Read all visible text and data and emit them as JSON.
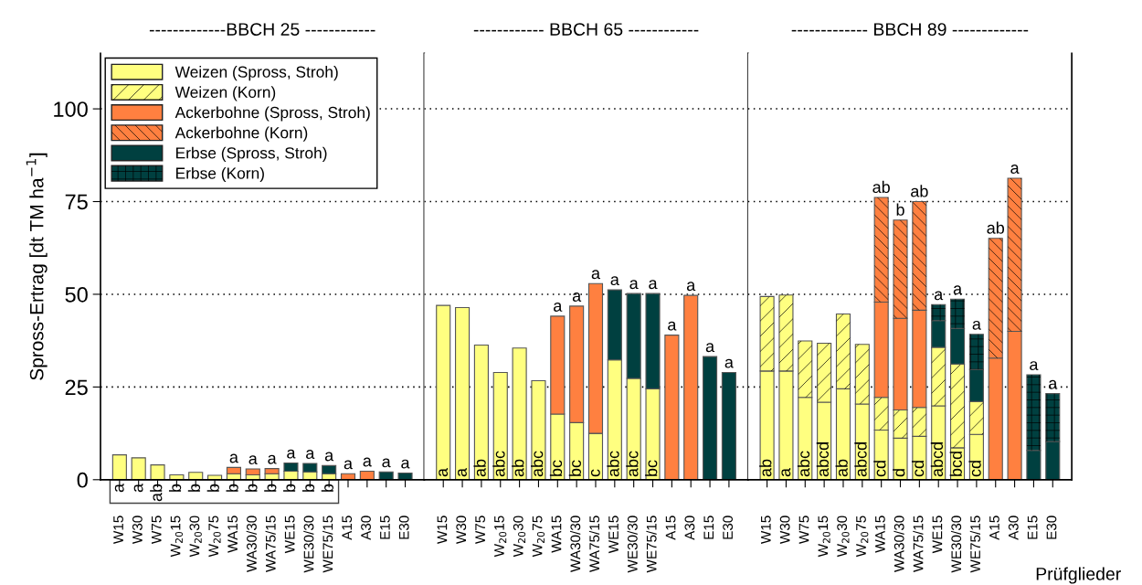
{
  "chart_data": [
    {
      "type": "bar",
      "stacked": true,
      "title": "-------------BBCH 25 ------------",
      "ylabel": "Spross-Ertrag [dt TM ha$^{−1}$]",
      "legend": "top left",
      "grid": "y",
      "categories": [
        "W15",
        "W30",
        "W75",
        "W$_{20}$15",
        "W$_{20}$30",
        "W$_{20}$75",
        "WA15",
        "WA30/30",
        "WA75/15",
        "WE15",
        "WE30/30",
        "WE75/15",
        "A15",
        "A30",
        "E15",
        "E30"
      ],
      "ylim": [
        0,
        115
      ],
      "yticks": [
        0,
        25,
        50,
        75,
        100
      ],
      "series": [
        {
          "name": "Weizen (Spross, Stroh)",
          "color": "#ffff80",
          "values": [
            6.7,
            5.9,
            4.0,
            1.3,
            2.0,
            1.2,
            1.6,
            1.3,
            1.6,
            2.3,
            2.1,
            1.6,
            null,
            null,
            null,
            null
          ]
        },
        {
          "name": "Weizen (Korn)",
          "color": "#ffff80",
          "values": [
            null,
            null,
            null,
            null,
            null,
            null,
            null,
            null,
            null,
            null,
            null,
            null,
            null,
            null,
            null,
            null
          ]
        },
        {
          "name": "Ackerbohne (Spross, Stroh)",
          "color": "#ff8040",
          "values": [
            null,
            null,
            null,
            null,
            null,
            null,
            1.7,
            1.6,
            1.4,
            null,
            null,
            null,
            1.6,
            2.3,
            null,
            null
          ]
        },
        {
          "name": "Ackerbohne (Korn)",
          "color": "#ff8040",
          "values": [
            null,
            null,
            null,
            null,
            null,
            null,
            null,
            null,
            null,
            null,
            null,
            null,
            null,
            null,
            null,
            null
          ]
        },
        {
          "name": "Erbse (Spross, Stroh)",
          "color": "#004040",
          "values": [
            null,
            null,
            null,
            null,
            null,
            null,
            null,
            null,
            null,
            2.2,
            2.3,
            2.2,
            null,
            null,
            2.1,
            1.8
          ]
        },
        {
          "name": "Erbse (Korn)",
          "color": "#004040",
          "values": [
            null,
            null,
            null,
            null,
            null,
            null,
            null,
            null,
            null,
            null,
            null,
            null,
            null,
            null,
            null,
            null
          ]
        }
      ],
      "annotations": [
        {
          "text": "a",
          "x": "W15",
          "y": 0
        },
        {
          "text": "a",
          "x": "W30",
          "y": 0
        },
        {
          "text": "ab",
          "x": "W75",
          "y": 0
        },
        {
          "text": "b",
          "x": "W$_{20}$15",
          "y": 0
        },
        {
          "text": "b",
          "x": "W$_{20}$30",
          "y": 0
        },
        {
          "text": "b",
          "x": "W$_{20}$75",
          "y": 0
        },
        {
          "text": "b",
          "x": "WA15",
          "y": 0
        },
        {
          "text": "b",
          "x": "WA30/30",
          "y": 0
        },
        {
          "text": "b",
          "x": "WA75/15",
          "y": 0
        },
        {
          "text": "b",
          "x": "WE15",
          "y": 0
        },
        {
          "text": "b",
          "x": "WE30/30",
          "y": 0
        },
        {
          "text": "b",
          "x": "WE75/15",
          "y": 0
        },
        {
          "text": "a",
          "x": "WA15",
          "y": 3.3
        },
        {
          "text": "a",
          "x": "WA30/30",
          "y": 2.9
        },
        {
          "text": "a",
          "x": "WA75/15",
          "y": 3.0
        },
        {
          "text": "a",
          "x": "WE15",
          "y": 4.5
        },
        {
          "text": "a",
          "x": "WE30/30",
          "y": 4.4
        },
        {
          "text": "a",
          "x": "WE75/15",
          "y": 3.8
        },
        {
          "text": "a",
          "x": "A15",
          "y": 1.6
        },
        {
          "text": "a",
          "x": "A30",
          "y": 2.3
        },
        {
          "text": "a",
          "x": "E15",
          "y": 2.1
        },
        {
          "text": "a",
          "x": "E30",
          "y": 1.8
        }
      ]
    },
    {
      "type": "bar",
      "stacked": true,
      "title": "------------ BBCH 65 ------------",
      "grid": "y",
      "tick_labels": "x",
      "categories": [
        "W15",
        "W30",
        "W75",
        "W$_{20}$15",
        "W$_{20}$30",
        "W$_{20}$75",
        "WA15",
        "WA30/30",
        "WA75/15",
        "WE15",
        "WE30/30",
        "WE75/15",
        "A15",
        "A30",
        "E15",
        "E30"
      ],
      "ylim": [
        0,
        115
      ],
      "yticks": [
        0,
        25,
        50,
        75,
        100
      ],
      "series": [
        {
          "color": "#ffff80",
          "values": [
            47.0,
            46.4,
            36.3,
            28.9,
            35.5,
            26.7,
            17.7,
            15.4,
            12.5,
            32.3,
            27.3,
            24.5,
            null,
            null,
            null,
            null
          ]
        },
        {
          "color": "#ff8040",
          "values": [
            null,
            null,
            null,
            null,
            null,
            null,
            26.4,
            31.4,
            40.4,
            null,
            null,
            null,
            39.0,
            49.7,
            null,
            null
          ]
        },
        {
          "color": "#004040",
          "values": [
            null,
            null,
            null,
            null,
            null,
            null,
            null,
            null,
            null,
            18.9,
            22.9,
            25.7,
            null,
            null,
            33.2,
            28.9
          ]
        }
      ],
      "annotations": [
        {
          "text": "a",
          "x": "W15",
          "y": 0
        },
        {
          "text": "a",
          "x": "W30",
          "y": 0
        },
        {
          "text": "ab",
          "x": "W75",
          "y": 0
        },
        {
          "text": "abc",
          "x": "W$_{20}$15",
          "y": 0
        },
        {
          "text": "ab",
          "x": "W$_{20}$30",
          "y": 0
        },
        {
          "text": "abc",
          "x": "W$_{20}$75",
          "y": 0
        },
        {
          "text": "bc",
          "x": "WA15",
          "y": 0
        },
        {
          "text": "bc",
          "x": "WA30/30",
          "y": 0
        },
        {
          "text": "c",
          "x": "WA75/15",
          "y": 0
        },
        {
          "text": "abc",
          "x": "WE15",
          "y": 0
        },
        {
          "text": "abc",
          "x": "WE30/30",
          "y": 0
        },
        {
          "text": "bc",
          "x": "WE75/15",
          "y": 0
        },
        {
          "text": "a",
          "x": "WA15",
          "y": 44.1
        },
        {
          "text": "a",
          "x": "WA30/30",
          "y": 46.8
        },
        {
          "text": "a",
          "x": "WA75/15",
          "y": 52.9
        },
        {
          "text": "a",
          "x": "WE15",
          "y": 51.2
        },
        {
          "text": "a",
          "x": "WE30/30",
          "y": 50.2
        },
        {
          "text": "a",
          "x": "WE75/15",
          "y": 50.2
        },
        {
          "text": "a",
          "x": "A15",
          "y": 39.0
        },
        {
          "text": "a",
          "x": "A30",
          "y": 49.7
        },
        {
          "text": "a",
          "x": "E15",
          "y": 33.2
        },
        {
          "text": "a",
          "x": "E30",
          "y": 28.9
        }
      ]
    },
    {
      "type": "bar",
      "stacked": true,
      "title": "------------- BBCH 89 -------------",
      "xlabel": "Prüfglieder",
      "grid": "y",
      "tick_labels": "x",
      "categories": [
        "W15",
        "W30",
        "W75",
        "W$_{20}$15",
        "W$_{20}$30",
        "W$_{20}$75",
        "WA15",
        "WA30/30",
        "WA75/15",
        "WE15",
        "WE30/30",
        "WE75/15",
        "A15",
        "A30",
        "E15",
        "E30"
      ],
      "ylim": [
        0,
        115
      ],
      "yticks": [
        0,
        25,
        50,
        75,
        100
      ],
      "series": [
        {
          "color": "#ffff80",
          "values": [
            29.3,
            29.3,
            22.2,
            20.9,
            24.5,
            20.4,
            13.4,
            11.2,
            11.7,
            19.9,
            8.6,
            12.2,
            null,
            null,
            null,
            null
          ]
        },
        {
          "color": "#ffff80",
          "values": [
            20.1,
            20.5,
            15.2,
            15.9,
            20.2,
            16.1,
            8.8,
            7.6,
            7.8,
            15.8,
            22.6,
            8.9,
            null,
            null,
            null,
            null
          ]
        },
        {
          "color": "#ff8040",
          "values": [
            null,
            null,
            null,
            null,
            null,
            null,
            25.7,
            24.7,
            26.2,
            null,
            null,
            null,
            32.8,
            40.0,
            null,
            null
          ]
        },
        {
          "color": "#ff8040",
          "values": [
            null,
            null,
            null,
            null,
            null,
            null,
            28.2,
            26.5,
            29.3,
            null,
            null,
            null,
            32.3,
            41.3,
            null,
            null
          ]
        },
        {
          "color": "#004040",
          "values": [
            null,
            null,
            null,
            null,
            null,
            null,
            null,
            null,
            null,
            7.2,
            9.6,
            8.6,
            null,
            null,
            7.9,
            10.3
          ]
        },
        {
          "color": "#004040",
          "values": [
            null,
            null,
            null,
            null,
            null,
            null,
            null,
            null,
            null,
            4.3,
            7.9,
            9.5,
            null,
            null,
            20.4,
            12.9
          ]
        }
      ],
      "annotations": [
        {
          "text": "ab",
          "x": "W15",
          "y": 0
        },
        {
          "text": "a",
          "x": "W30",
          "y": 0
        },
        {
          "text": "abc",
          "x": "W75",
          "y": 0
        },
        {
          "text": "abcd",
          "x": "W$_{20}$15",
          "y": 0
        },
        {
          "text": "ab",
          "x": "W$_{20}$30",
          "y": 0
        },
        {
          "text": "abcd",
          "x": "W$_{20}$75",
          "y": 0
        },
        {
          "text": "cd",
          "x": "WA15",
          "y": 0
        },
        {
          "text": "d",
          "x": "WA30/30",
          "y": 0
        },
        {
          "text": "cd",
          "x": "WA75/15",
          "y": 0
        },
        {
          "text": "abcd",
          "x": "WE15",
          "y": 0
        },
        {
          "text": "bcd",
          "x": "WE30/30",
          "y": 0
        },
        {
          "text": "cd",
          "x": "WE75/15",
          "y": 0
        },
        {
          "text": "ab",
          "x": "WA15",
          "y": 76.1
        },
        {
          "text": "b",
          "x": "WA30/30",
          "y": 70.0
        },
        {
          "text": "ab",
          "x": "WA75/15",
          "y": 75.0
        },
        {
          "text": "a",
          "x": "WE15",
          "y": 47.2
        },
        {
          "text": "a",
          "x": "WE30/30",
          "y": 48.7
        },
        {
          "text": "a",
          "x": "WE75/15",
          "y": 39.2
        },
        {
          "text": "ab",
          "x": "A15",
          "y": 65.1
        },
        {
          "text": "a",
          "x": "A30",
          "y": 81.3
        },
        {
          "text": "a",
          "x": "E15",
          "y": 28.3
        },
        {
          "text": "a",
          "x": "E30",
          "y": 23.2
        }
      ]
    }
  ]
}
